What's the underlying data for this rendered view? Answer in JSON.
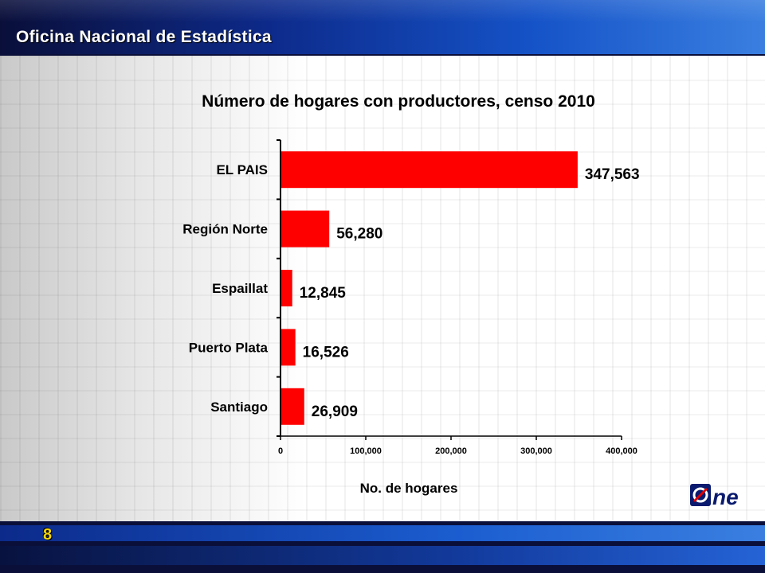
{
  "header": {
    "org_name": "Oficina Nacional de Estadística"
  },
  "footer": {
    "page_number": "8"
  },
  "logo": {
    "text": "One"
  },
  "colors": {
    "bar": "#ff0000",
    "header_band": "#0d2a8a",
    "page_number": "#f5d400"
  },
  "chart_data": {
    "type": "bar",
    "orientation": "horizontal",
    "title": "Número de hogares con productores,  censo 2010",
    "xlabel": "No. de hogares",
    "ylabel": "",
    "categories": [
      "EL PAIS",
      "Región Norte",
      "Espaillat",
      "Puerto Plata",
      "Santiago"
    ],
    "values": [
      347563,
      56280,
      12845,
      16526,
      26909
    ],
    "value_labels": [
      "347,563",
      "56,280",
      "12,845",
      "16,526",
      "26,909"
    ],
    "xlim": [
      0,
      400000
    ],
    "xticks": [
      0,
      100000,
      200000,
      300000,
      400000
    ],
    "xtick_labels": [
      "0",
      "100,000",
      "200,000",
      "300,000",
      "400,000"
    ],
    "grid": false,
    "legend": "none"
  }
}
